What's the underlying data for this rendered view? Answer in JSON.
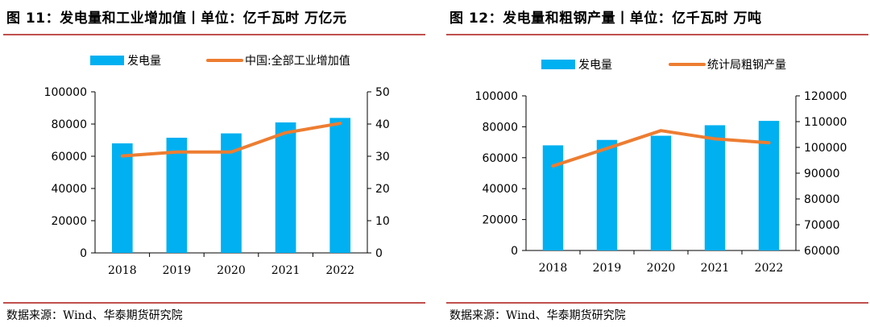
{
  "charts": [
    {
      "title": "图 11：发电量和工业增加值丨单位：亿千瓦时 万亿元",
      "source": "数据来源：Wind、华泰期货研究院",
      "colors": {
        "bar": "#00b0f0",
        "line": "#ed7d31",
        "rule": "#c0504d"
      },
      "chart_data": {
        "type": "bar",
        "categories": [
          "2018",
          "2019",
          "2020",
          "2021",
          "2022"
        ],
        "series": [
          {
            "name": "发电量",
            "type": "bar",
            "axis": "left",
            "values": [
              68000,
              71500,
              74200,
              81000,
              83800
            ]
          },
          {
            "name": "中国:全部工业增加值",
            "type": "line",
            "axis": "right",
            "values": [
              30.1,
              31.3,
              31.3,
              37.3,
              40.2
            ]
          }
        ],
        "y_left": {
          "min": 0,
          "max": 100000,
          "ticks": [
            "0",
            "20000",
            "40000",
            "60000",
            "80000",
            "100000"
          ]
        },
        "y_right": {
          "min": 0,
          "max": 50,
          "ticks": [
            "0",
            "10",
            "20",
            "30",
            "40",
            "50"
          ]
        },
        "legend": "top",
        "grid": false
      }
    },
    {
      "title": "图 12：发电量和粗钢产量丨单位：亿千瓦时 万吨",
      "source": "数据来源：Wind、华泰期货研究院",
      "colors": {
        "bar": "#00b0f0",
        "line": "#ed7d31",
        "rule": "#c0504d"
      },
      "chart_data": {
        "type": "bar",
        "categories": [
          "2018",
          "2019",
          "2020",
          "2021",
          "2022"
        ],
        "series": [
          {
            "name": "发电量",
            "type": "bar",
            "axis": "left",
            "values": [
              68000,
              71500,
              74200,
              81000,
              83800
            ]
          },
          {
            "name": "统计局粗钢产量",
            "type": "line",
            "axis": "right",
            "values": [
              92800,
              99600,
              106500,
              103300,
              101800
            ]
          }
        ],
        "y_left": {
          "min": 0,
          "max": 100000,
          "ticks": [
            "0",
            "20000",
            "40000",
            "60000",
            "80000",
            "100000"
          ]
        },
        "y_right": {
          "min": 60000,
          "max": 120000,
          "ticks": [
            "60000",
            "70000",
            "80000",
            "90000",
            "100000",
            "110000",
            "120000"
          ]
        },
        "legend": "top",
        "grid": false
      }
    }
  ]
}
